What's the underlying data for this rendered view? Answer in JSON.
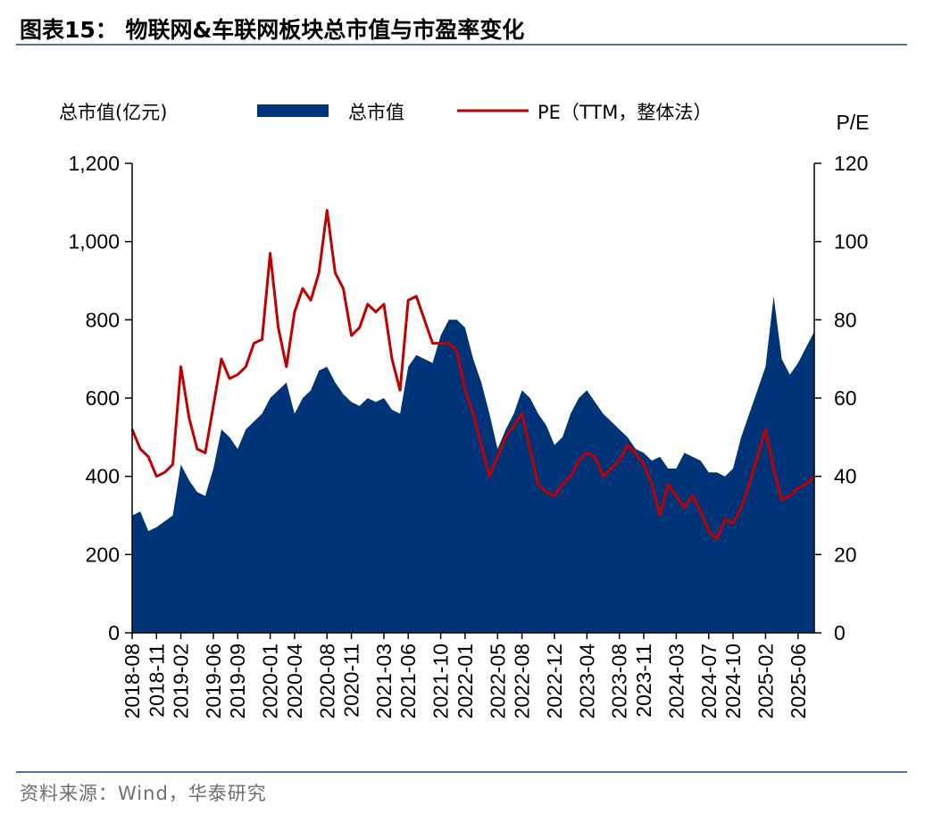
{
  "title": "图表15： 物联网&车联网板块总市值与市盈率变化",
  "source": "资料来源：Wind，华泰研究",
  "colors": {
    "area": "#003478",
    "line": "#c00000",
    "rule": "#5470a3"
  },
  "chart_data": {
    "type": "area+line",
    "left_axis_label": "总市值(亿元)",
    "right_axis_label": "P/E",
    "legend": {
      "area": "总市值",
      "line": "PE（TTM，整体法）"
    },
    "left_ylim": [
      0,
      1200
    ],
    "right_ylim": [
      0,
      120
    ],
    "left_ticks": [
      "1,200",
      "1,000",
      "800",
      "600",
      "400",
      "200",
      "0"
    ],
    "right_ticks": [
      "120",
      "100",
      "80",
      "60",
      "40",
      "20",
      "0"
    ],
    "x_ticks": [
      "2018-08",
      "2018-11",
      "2019-02",
      "2019-06",
      "2019-09",
      "2020-01",
      "2020-04",
      "2020-08",
      "2020-11",
      "2021-03",
      "2021-06",
      "2021-10",
      "2022-01",
      "2022-05",
      "2022-08",
      "2022-12",
      "2023-04",
      "2023-08",
      "2023-11",
      "2024-03",
      "2024-07",
      "2024-10",
      "2025-02",
      "2025-06"
    ],
    "x_range": [
      "2018-08",
      "2025-08"
    ],
    "series": [
      {
        "name": "总市值",
        "kind": "area",
        "axis": "left",
        "x": [
          "2018-08",
          "2018-09",
          "2018-10",
          "2018-11",
          "2018-12",
          "2019-01",
          "2019-02",
          "2019-03",
          "2019-04",
          "2019-05",
          "2019-06",
          "2019-07",
          "2019-08",
          "2019-09",
          "2019-10",
          "2019-11",
          "2019-12",
          "2020-01",
          "2020-02",
          "2020-03",
          "2020-04",
          "2020-05",
          "2020-06",
          "2020-07",
          "2020-08",
          "2020-09",
          "2020-10",
          "2020-11",
          "2020-12",
          "2021-01",
          "2021-02",
          "2021-03",
          "2021-04",
          "2021-05",
          "2021-06",
          "2021-07",
          "2021-08",
          "2021-09",
          "2021-10",
          "2021-11",
          "2021-12",
          "2022-01",
          "2022-02",
          "2022-03",
          "2022-04",
          "2022-05",
          "2022-06",
          "2022-07",
          "2022-08",
          "2022-09",
          "2022-10",
          "2022-11",
          "2022-12",
          "2023-01",
          "2023-02",
          "2023-03",
          "2023-04",
          "2023-05",
          "2023-06",
          "2023-07",
          "2023-08",
          "2023-09",
          "2023-10",
          "2023-11",
          "2023-12",
          "2024-01",
          "2024-02",
          "2024-03",
          "2024-04",
          "2024-05",
          "2024-06",
          "2024-07",
          "2024-08",
          "2024-09",
          "2024-10",
          "2024-11",
          "2024-12",
          "2025-01",
          "2025-02",
          "2025-03",
          "2025-04",
          "2025-05",
          "2025-06",
          "2025-07",
          "2025-08"
        ],
        "values": [
          300,
          310,
          260,
          270,
          285,
          300,
          430,
          390,
          360,
          350,
          420,
          520,
          500,
          470,
          520,
          540,
          560,
          600,
          620,
          640,
          560,
          600,
          620,
          670,
          680,
          640,
          610,
          590,
          580,
          600,
          590,
          600,
          570,
          560,
          680,
          710,
          700,
          690,
          760,
          800,
          800,
          780,
          700,
          640,
          560,
          470,
          520,
          560,
          620,
          600,
          560,
          530,
          480,
          500,
          560,
          600,
          620,
          590,
          560,
          540,
          520,
          500,
          470,
          460,
          440,
          450,
          420,
          420,
          460,
          450,
          440,
          410,
          410,
          400,
          420,
          500,
          560,
          620,
          680,
          860,
          700,
          660,
          690,
          730,
          770
        ]
      },
      {
        "name": "PE（TTM，整体法）",
        "kind": "line",
        "axis": "right",
        "x": [
          "2018-08",
          "2018-09",
          "2018-10",
          "2018-11",
          "2018-12",
          "2019-01",
          "2019-02",
          "2019-03",
          "2019-04",
          "2019-05",
          "2019-06",
          "2019-07",
          "2019-08",
          "2019-09",
          "2019-10",
          "2019-11",
          "2019-12",
          "2020-01",
          "2020-02",
          "2020-03",
          "2020-04",
          "2020-05",
          "2020-06",
          "2020-07",
          "2020-08",
          "2020-09",
          "2020-10",
          "2020-11",
          "2020-12",
          "2021-01",
          "2021-02",
          "2021-03",
          "2021-04",
          "2021-05",
          "2021-06",
          "2021-07",
          "2021-08",
          "2021-09",
          "2021-10",
          "2021-11",
          "2021-12",
          "2022-01",
          "2022-02",
          "2022-03",
          "2022-04",
          "2022-05",
          "2022-06",
          "2022-07",
          "2022-08",
          "2022-09",
          "2022-10",
          "2022-11",
          "2022-12",
          "2023-01",
          "2023-02",
          "2023-03",
          "2023-04",
          "2023-05",
          "2023-06",
          "2023-07",
          "2023-08",
          "2023-09",
          "2023-10",
          "2023-11",
          "2023-12",
          "2024-01",
          "2024-02",
          "2024-03",
          "2024-04",
          "2024-05",
          "2024-06",
          "2024-07",
          "2024-08",
          "2024-09",
          "2024-10",
          "2024-11",
          "2024-12",
          "2025-01",
          "2025-02",
          "2025-03",
          "2025-04",
          "2025-05",
          "2025-06",
          "2025-07",
          "2025-08"
        ],
        "values": [
          52,
          47,
          45,
          40,
          41,
          43,
          68,
          55,
          47,
          46,
          58,
          70,
          65,
          66,
          68,
          74,
          75,
          97,
          78,
          68,
          82,
          88,
          85,
          92,
          108,
          92,
          88,
          76,
          78,
          84,
          82,
          84,
          70,
          62,
          85,
          86,
          80,
          74,
          74,
          74,
          72,
          62,
          56,
          48,
          40,
          45,
          50,
          53,
          56,
          47,
          38,
          36,
          35,
          38,
          40,
          44,
          46,
          45,
          40,
          42,
          44,
          48,
          46,
          43,
          38,
          30,
          38,
          35,
          32,
          35,
          31,
          26,
          24,
          29,
          28,
          32,
          38,
          45,
          52,
          42,
          34,
          35,
          37,
          38,
          40
        ]
      }
    ]
  }
}
